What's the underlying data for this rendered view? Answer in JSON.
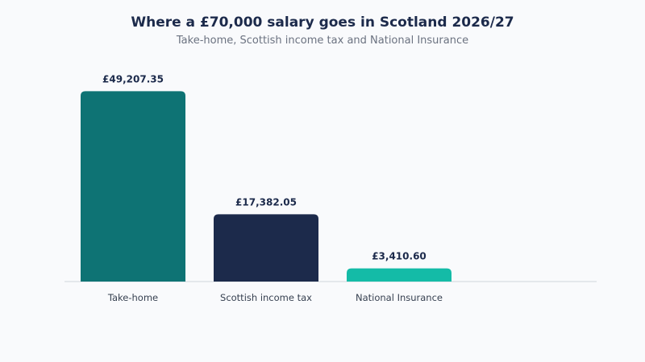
{
  "chart_data": {
    "type": "bar",
    "title": "Where a £70,000 salary goes in Scotland 2026/27",
    "subtitle": "Take-home, Scottish income tax and National Insurance",
    "categories": [
      "Take-home",
      "Scottish income tax",
      "National Insurance"
    ],
    "values": [
      49207.35,
      17382.05,
      3410.6
    ],
    "value_labels": [
      "£49,207.35",
      "£17,382.05",
      "£3,410.60"
    ],
    "colors": [
      "#0e7374",
      "#1c2a4b",
      "#14bba7"
    ],
    "ylim": [
      0,
      52000
    ],
    "grid": false,
    "legend": "none"
  }
}
